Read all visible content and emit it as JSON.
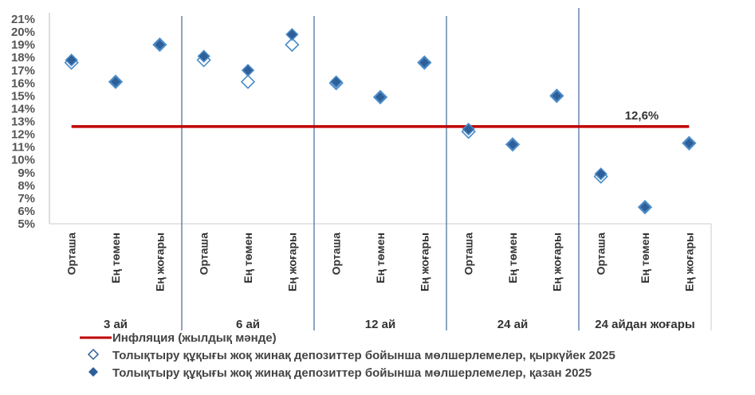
{
  "chart_data": {
    "type": "scatter",
    "title": "",
    "ylim": [
      5,
      21
    ],
    "yticks": [
      "5%",
      "6%",
      "7%",
      "8%",
      "9%",
      "10%",
      "11%",
      "12%",
      "13%",
      "14%",
      "15%",
      "16%",
      "17%",
      "18%",
      "19%",
      "20%",
      "21%"
    ],
    "groups": [
      "3 ай",
      "6 ай",
      "12 ай",
      "24 ай",
      "24 айдан жоғары"
    ],
    "subcategories": [
      "Орташа",
      "Ең төмен",
      "Ең жоғары"
    ],
    "series": [
      {
        "name": "Толықтыру құқығы жоқ жинақ депозиттер бойынша мөлшерлемелер, қыркүйек 2025",
        "marker": "hollow-diamond",
        "values": [
          17.6,
          16.1,
          19.0,
          17.8,
          16.1,
          19.0,
          16.0,
          14.9,
          17.6,
          12.2,
          11.2,
          15.0,
          8.7,
          6.3,
          11.3
        ]
      },
      {
        "name": "Толықтыру құқығы жоқ жинақ депозиттер бойынша мөлшерлемелер, қазан 2025",
        "marker": "filled-diamond",
        "values": [
          17.8,
          16.1,
          19.0,
          18.1,
          17.0,
          19.8,
          16.1,
          14.9,
          17.6,
          12.4,
          11.2,
          15.0,
          8.9,
          6.3,
          11.3
        ]
      }
    ],
    "inflation": {
      "name": "Инфляция (жылдық мәнде)",
      "value": 12.6,
      "label": "12,6%"
    },
    "colors": {
      "inflation": "#C00000",
      "marker": "#2E5F99",
      "marker_edge": "#4A8BC8",
      "separator": "#4F73A0"
    },
    "legend_position": "bottom"
  }
}
